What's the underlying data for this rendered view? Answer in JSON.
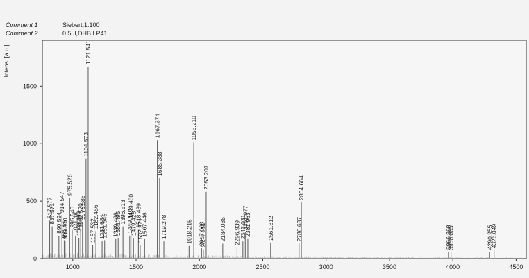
{
  "comments": [
    {
      "label": "Comment 1",
      "value": "Siebert,1:100"
    },
    {
      "label": "Comment 2",
      "value": "0.5ul,DHB,LP41"
    }
  ],
  "chart_data": {
    "type": "bar",
    "title": "",
    "xlabel": "",
    "ylabel": "Intens. [a.u.]",
    "xlim": [
      760,
      4580
    ],
    "ylim": [
      0,
      1900
    ],
    "xticks": [
      1000,
      1500,
      2000,
      2500,
      3000,
      3500,
      4000,
      4500
    ],
    "yticks": [
      0,
      500,
      1000,
      1500
    ],
    "grid": false,
    "legend": "none",
    "colors": {
      "line": "#666666",
      "axis": "#333333",
      "label": "#222222"
    },
    "peaks": [
      {
        "x": 817.577,
        "y": 330,
        "label": "817.577"
      },
      {
        "x": 837.571,
        "y": 280,
        "label": "837.571"
      },
      {
        "x": 890.594,
        "y": 200,
        "label": "890.594"
      },
      {
        "x": 914.547,
        "y": 380,
        "label": "914.547"
      },
      {
        "x": 932.55,
        "y": 160,
        "label": "932.55"
      },
      {
        "x": 939.57,
        "y": 150,
        "label": "939.570"
      },
      {
        "x": 975.526,
        "y": 530,
        "label": "975.526"
      },
      {
        "x": 995.546,
        "y": 250,
        "label": "995.546"
      },
      {
        "x": 1021.48,
        "y": 200,
        "label": "1021.48"
      },
      {
        "x": 1048.499,
        "y": 180,
        "label": "1048.499"
      },
      {
        "x": 1062.57,
        "y": 250,
        "label": "1062.570"
      },
      {
        "x": 1076.586,
        "y": 320,
        "label": "1076.586"
      },
      {
        "x": 1104.573,
        "y": 870,
        "label": "1104.573"
      },
      {
        "x": 1121.541,
        "y": 1670,
        "label": "1121.541"
      },
      {
        "x": 1157.532,
        "y": 120,
        "label": "1157.532"
      },
      {
        "x": 1182.456,
        "y": 240,
        "label": "1182.456"
      },
      {
        "x": 1231.684,
        "y": 150,
        "label": "1231.684"
      },
      {
        "x": 1251.645,
        "y": 160,
        "label": "1251.645"
      },
      {
        "x": 1339.466,
        "y": 170,
        "label": "1339.466"
      },
      {
        "x": 1358.495,
        "y": 180,
        "label": "1358.495"
      },
      {
        "x": 1396.513,
        "y": 280,
        "label": "1396.513"
      },
      {
        "x": 1449.44,
        "y": 200,
        "label": "1449.440"
      },
      {
        "x": 1459.48,
        "y": 330,
        "label": "1459.480"
      },
      {
        "x": 1479.428,
        "y": 180,
        "label": "1479.428"
      },
      {
        "x": 1518.439,
        "y": 250,
        "label": "1518.439"
      },
      {
        "x": 1532.371,
        "y": 120,
        "label": "1532.371"
      },
      {
        "x": 1567.446,
        "y": 170,
        "label": "1567.446"
      },
      {
        "x": 1667.374,
        "y": 1030,
        "label": "1667.374"
      },
      {
        "x": 1685.388,
        "y": 700,
        "label": "1685.388"
      },
      {
        "x": 1719.278,
        "y": 150,
        "label": "1719.278"
      },
      {
        "x": 1918.215,
        "y": 110,
        "label": "1918.215"
      },
      {
        "x": 1955.21,
        "y": 1010,
        "label": "1955.210"
      },
      {
        "x": 2017.063,
        "y": 90,
        "label": "2017.063"
      },
      {
        "x": 2031.114,
        "y": 80,
        "label": "2031.114"
      },
      {
        "x": 2053.207,
        "y": 580,
        "label": "2053.207"
      },
      {
        "x": 2184.085,
        "y": 130,
        "label": "2184.085"
      },
      {
        "x": 2296.939,
        "y": 100,
        "label": "2296.939"
      },
      {
        "x": 2343.031,
        "y": 150,
        "label": "2343.031"
      },
      {
        "x": 2361.977,
        "y": 230,
        "label": "2361.977"
      },
      {
        "x": 2381.963,
        "y": 170,
        "label": "2381.963"
      },
      {
        "x": 2561.812,
        "y": 140,
        "label": "2561.812"
      },
      {
        "x": 2786.687,
        "y": 130,
        "label": "2786.687"
      },
      {
        "x": 2804.664,
        "y": 490,
        "label": "2804.664"
      },
      {
        "x": 3966.968,
        "y": 60,
        "label": "3966.968"
      },
      {
        "x": 3986.065,
        "y": 55,
        "label": "3986.065"
      },
      {
        "x": 4290.955,
        "y": 60,
        "label": "4290.955"
      },
      {
        "x": 4326.049,
        "y": 70,
        "label": "4326.049"
      }
    ]
  }
}
